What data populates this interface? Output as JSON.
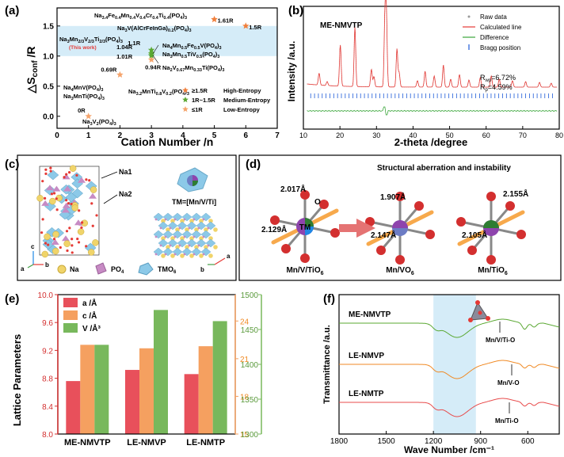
{
  "panel_a": {
    "label": "(a)",
    "xlabel": "Cation Number /n",
    "ylabel": "ΔS_conf /R",
    "ylabel_main": "△S",
    "ylabel_sub": "conf",
    "ylabel_tail": " /R",
    "this_work": "(This work)",
    "legend": [
      {
        "symbol": "★",
        "range": "≥1.5R",
        "name": "High-Entropy",
        "color": "#f07f3c"
      },
      {
        "symbol": "★",
        "range": "1R~1.5R",
        "name": "Medium-Entropy",
        "color": "#5aa832"
      },
      {
        "symbol": "★",
        "range": "≤1R",
        "name": "Low-Entropy",
        "color": "#f5a46c"
      }
    ]
  },
  "panel_b": {
    "label": "(b)",
    "title": "ME-NMVTP",
    "xlabel": "2-theta /degree",
    "ylabel": "Intensity /a.u.",
    "legend": [
      "Raw data",
      "Calculated line",
      "Difference",
      "Bragg position"
    ],
    "rwp": "R_wp=6.72%",
    "rp": "R_p=4.59%"
  },
  "panel_c": {
    "label": "(c)",
    "na1": "Na1",
    "na2": "Na2",
    "tm_label": "TM=[Mn/V/Ti]",
    "axis_a": "a",
    "axis_b": "b",
    "axis_c": "c",
    "legend_na": "Na",
    "legend_po4": "PO4",
    "legend_tmo6": "TMO6"
  },
  "panel_d": {
    "label": "(d)",
    "title": "Structural aberration and instability",
    "o_label": "O",
    "tm_label": "TM",
    "structures": [
      {
        "name": "Mn/V/TiO6",
        "bond1": "2.017Å",
        "bond2": "2.129Å"
      },
      {
        "name": "Mn/VO6",
        "bond1": "1.907Å",
        "bond2": "2.147Å"
      },
      {
        "name": "Mn/TiO6",
        "bond1": "2.155Å",
        "bond2": "2.105Å"
      }
    ]
  },
  "panel_e": {
    "label": "(e)",
    "ylabel_left": "Lattice Parameters",
    "legend": [
      "a /Å",
      "c /Å",
      "V /Å³"
    ],
    "colors": [
      "#e8505b",
      "#f5a060",
      "#78b85c"
    ]
  },
  "panel_f": {
    "label": "(f)",
    "xlabel": "Wave Number /cm⁻¹",
    "ylabel": "Transmittance /a.u.",
    "traces": [
      {
        "name": "ME-NMVTP",
        "annotation": "Mn/V/Ti-O",
        "color": "#5aa832"
      },
      {
        "name": "LE-NMVP",
        "annotation": "Mn/V-O",
        "color": "#f08a24"
      },
      {
        "name": "LE-NMTP",
        "annotation": "Mn/Ti-O",
        "color": "#e84b4b"
      }
    ]
  },
  "chart_data": [
    {
      "type": "scatter",
      "title": "",
      "xlabel": "Cation Number /n",
      "ylabel": "ΔS_conf /R",
      "xlim": [
        0,
        7
      ],
      "ylim": [
        -0.2,
        1.8
      ],
      "xticks": [
        0,
        1,
        2,
        3,
        4,
        5,
        6,
        7
      ],
      "yticks": [
        0.0,
        0.5,
        1.0,
        1.5
      ],
      "highlight_band": [
        1.0,
        1.5
      ],
      "points": [
        {
          "x": 1,
          "y": 0.0,
          "value_label": "0R",
          "compound": "Na3V2(PO4)3",
          "class": "low"
        },
        {
          "x": 2,
          "y": 0.69,
          "value_label": "0.69R",
          "compound": "Na4MnV(PO4)3",
          "compound2": "Na3MnTi(PO4)3",
          "class": "low"
        },
        {
          "x": 3,
          "y": 0.94,
          "value_label": "0.94R",
          "compound": "Na3.2MnTi0.8V0.2(PO4)3",
          "class": "low"
        },
        {
          "x": 3,
          "y": 1.01,
          "value_label": "1.01R",
          "compound": "Na2V0.67Mn0.33Ti(PO4)3",
          "class": "medium"
        },
        {
          "x": 3,
          "y": 1.04,
          "value_label": "1.04R",
          "compound": "Na4Mn0.5Fe0.5V(PO4)3",
          "compound2": "Na3Mn0.5TiV0.5(PO4)3",
          "class": "medium"
        },
        {
          "x": 3,
          "y": 1.1,
          "value_label": "1.1R",
          "compound": "Na3Mn2/3V2/3Ti2/3(PO4)3",
          "class": "medium"
        },
        {
          "x": 5,
          "y": 1.61,
          "value_label": "1.61R",
          "compound": "Na3.4Fe0.4Mn0.4V0.4Cr0.4Ti0.4(PO4)3",
          "class": "high"
        },
        {
          "x": 6,
          "y": 1.5,
          "value_label": "1.5R",
          "compound": "Na3V(AlCrFeInGa)0.2(PO4)3",
          "class": "high"
        }
      ]
    },
    {
      "type": "line",
      "title": "ME-NMVTP",
      "xlabel": "2-theta /degree",
      "ylabel": "Intensity /a.u.",
      "xlim": [
        10,
        80
      ],
      "xticks": [
        10,
        20,
        30,
        40,
        50,
        60,
        70,
        80
      ],
      "series": [
        {
          "name": "Raw data",
          "style": "markers"
        },
        {
          "name": "Calculated line",
          "style": "line"
        },
        {
          "name": "Difference",
          "style": "line"
        },
        {
          "name": "Bragg position",
          "style": "ticks"
        }
      ],
      "peaks_2theta": [
        14.3,
        16.5,
        20.1,
        24.1,
        28.6,
        29.3,
        32.3,
        32.7,
        35.6,
        36.2,
        41.2,
        43.3,
        45.8,
        48.3,
        50.3,
        52.7,
        55.3,
        58.4,
        61.4,
        63.6,
        67.2,
        70.8,
        74.6,
        77.8
      ],
      "peaks_relative_intensity": [
        0.15,
        0.05,
        0.52,
        0.75,
        0.22,
        0.13,
        0.84,
        0.9,
        0.48,
        0.18,
        0.08,
        0.2,
        0.14,
        0.28,
        0.1,
        0.16,
        0.09,
        0.12,
        0.14,
        0.1,
        0.08,
        0.07,
        0.06,
        0.05
      ],
      "rwp": "6.72%",
      "rp": "4.59%"
    },
    {
      "type": "bar",
      "categories": [
        "ME-NMVTP",
        "LE-NMVP",
        "LE-NMTP"
      ],
      "series": [
        {
          "name": "a /Å",
          "axis": "left",
          "values": [
            8.76,
            8.92,
            8.86
          ]
        },
        {
          "name": "c /Å",
          "axis": "left",
          "values": [
            9.28,
            9.23,
            9.26
          ]
        },
        {
          "name": "V /Å³",
          "axis": "right",
          "values": [
            1428,
            1478,
            1462
          ]
        }
      ],
      "ylabel": "Lattice Parameters",
      "ylim_left": [
        8.0,
        10.0
      ],
      "yticks_left": [
        8.0,
        8.4,
        8.8,
        9.2,
        9.6,
        10.0
      ],
      "ylim_right_c": [
        15,
        26.1
      ],
      "yticks_right_c": [
        15,
        18,
        21,
        24
      ],
      "ylim_right_v": [
        1300,
        1500
      ],
      "yticks_right_v": [
        1300,
        1350,
        1400,
        1450,
        1500
      ]
    },
    {
      "type": "line",
      "xlabel": "Wave Number /cm⁻¹",
      "ylabel": "Transmittance /a.u.",
      "xlim": [
        1800,
        400
      ],
      "xticks": [
        1800,
        1500,
        1200,
        900,
        600
      ],
      "highlight_band": [
        1200,
        930
      ],
      "series": [
        {
          "name": "ME-NMVTP",
          "annotation": "Mn/V/Ti-O"
        },
        {
          "name": "LE-NMVP",
          "annotation": "Mn/V-O"
        },
        {
          "name": "LE-NMTP",
          "annotation": "Mn/Ti-O"
        }
      ]
    }
  ]
}
